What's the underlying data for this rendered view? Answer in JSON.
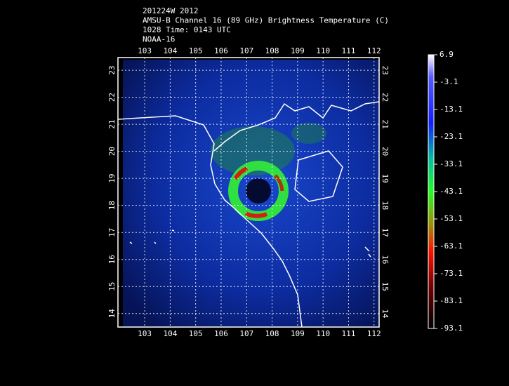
{
  "chart_data": {
    "type": "map",
    "title_lines": [
      "201224W 2012",
      "AMSU-B Channel 16 (89 GHz) Brightness Temperature (C)",
      "1028 Time: 0143 UTC",
      "NOAA-16"
    ],
    "xlim": [
      101.95,
      112.2
    ],
    "xticks": [
      103,
      104,
      105,
      106,
      107,
      108,
      109,
      110,
      111,
      112
    ],
    "ylim": [
      13.5,
      23.47
    ],
    "yticks": [
      14,
      15,
      16,
      17,
      18,
      19,
      20,
      21,
      22,
      23
    ],
    "grid": true,
    "colorbar": {
      "lim": [
        -93.1,
        6.9
      ],
      "ticks": [
        6.9,
        -3.1,
        -13.1,
        -23.1,
        -33.1,
        -43.1,
        -53.1,
        -63.1,
        -73.1,
        -83.1,
        -93.1
      ]
    }
  }
}
